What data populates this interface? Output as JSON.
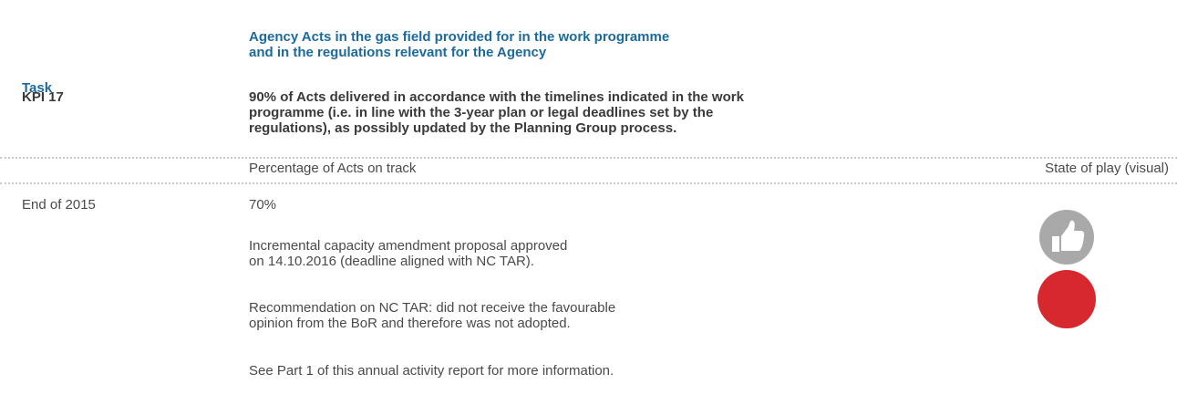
{
  "table": {
    "header": {
      "task": "Task",
      "title": [
        "Agency Acts in the gas field provided for in the work programme",
        "and in the regulations relevant for the Agency"
      ]
    },
    "kpi": {
      "label": "KPI 17",
      "text": [
        "90% of Acts delivered in accordance with the timelines indicated in the work",
        "programme (i.e. in line with the 3-year plan or legal deadlines set by the",
        "regulations), as possibly updated by the Planning Group process."
      ]
    },
    "columns": {
      "measure": "Percentage of Acts on track",
      "visual": "State of play (visual)"
    },
    "row": {
      "period": "End of 2015",
      "value": "70%",
      "items": [
        [
          "Incremental capacity amendment proposal approved",
          "on 14.10.2016 (deadline aligned with NC TAR)."
        ],
        [
          "Recommendation on NC TAR: did not receive the favourable",
          "opinion from the BoR and therefore was not adopted."
        ],
        [
          "See Part 1 of this annual activity report for more information."
        ]
      ]
    }
  }
}
